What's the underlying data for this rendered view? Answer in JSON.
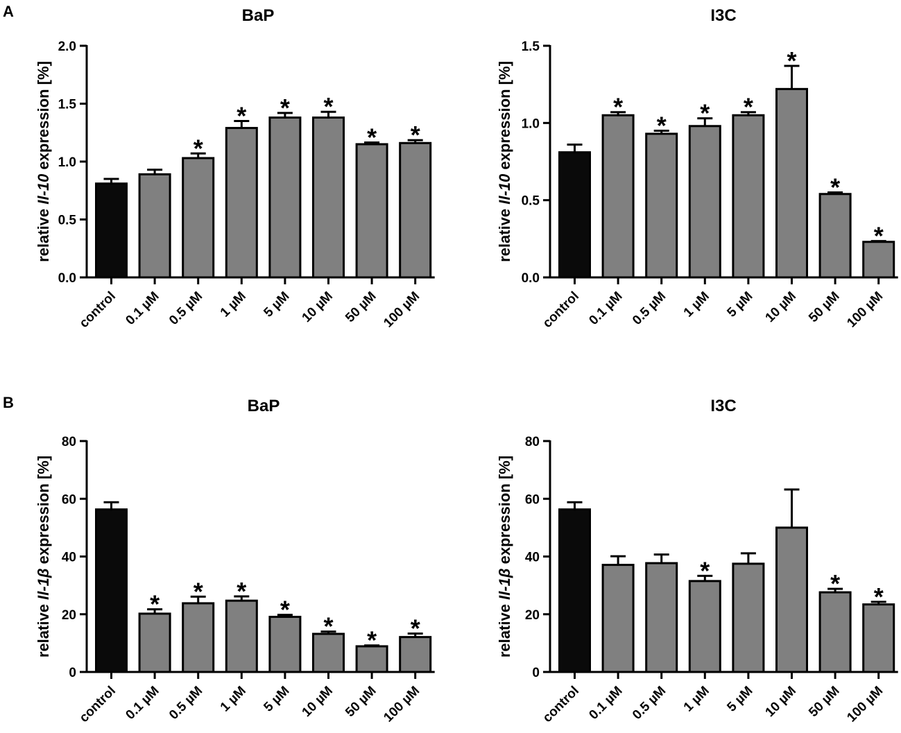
{
  "panel_labels": [
    "A",
    "B"
  ],
  "categories": [
    "control",
    "0.1 µM",
    "0.5 µM",
    "1 µM",
    "5 µM",
    "10 µM",
    "50 µM",
    "100 µM"
  ],
  "colors": {
    "control": "#0a0a0a",
    "treatment": "#808080",
    "axis": "#000000"
  },
  "chart_data": [
    {
      "type": "bar",
      "panel": "A",
      "title": "BaP",
      "ylabel": {
        "prefix": "relative ",
        "gene": "Il-10",
        "suffix": " expression [%]"
      },
      "categories": [
        "control",
        "0.1 µM",
        "0.5 µM",
        "1 µM",
        "5 µM",
        "10 µM",
        "50 µM",
        "100 µM"
      ],
      "values": [
        0.81,
        0.89,
        1.03,
        1.29,
        1.38,
        1.38,
        1.15,
        1.16
      ],
      "errors": [
        0.04,
        0.04,
        0.04,
        0.06,
        0.04,
        0.05,
        0.015,
        0.025
      ],
      "significant": [
        false,
        false,
        true,
        true,
        true,
        true,
        true,
        true
      ],
      "ylim": [
        0,
        2.0
      ],
      "yticks": [
        "0.0",
        "0.5",
        "1.0",
        "1.5",
        "2.0"
      ]
    },
    {
      "type": "bar",
      "panel": "A",
      "title": "I3C",
      "ylabel": {
        "prefix": "relative ",
        "gene": "Il-10",
        "suffix": " expression [%]"
      },
      "categories": [
        "control",
        "0.1 µM",
        "0.5 µM",
        "1 µM",
        "5 µM",
        "10 µM",
        "50 µM",
        "100 µM"
      ],
      "values": [
        0.81,
        1.05,
        0.93,
        0.98,
        1.05,
        1.22,
        0.54,
        0.23
      ],
      "errors": [
        0.05,
        0.02,
        0.02,
        0.05,
        0.02,
        0.15,
        0.01,
        0.005
      ],
      "significant": [
        false,
        true,
        true,
        true,
        true,
        true,
        true,
        true
      ],
      "ylim": [
        0,
        1.5
      ],
      "yticks": [
        "0.0",
        "0.5",
        "1.0",
        "1.5"
      ]
    },
    {
      "type": "bar",
      "panel": "B",
      "title": "BaP",
      "ylabel": {
        "prefix": "relative ",
        "gene": "Il-1β",
        "suffix": " expression [%]"
      },
      "categories": [
        "control",
        "0.1 µM",
        "0.5 µM",
        "1 µM",
        "5 µM",
        "10 µM",
        "50 µM",
        "100 µM"
      ],
      "values": [
        56.3,
        20.2,
        23.8,
        24.7,
        19.1,
        13.2,
        8.9,
        12.1
      ],
      "errors": [
        2.5,
        1.5,
        2.3,
        1.5,
        0.7,
        0.8,
        0.3,
        1.2
      ],
      "significant": [
        false,
        true,
        true,
        true,
        true,
        true,
        true,
        true
      ],
      "ylim": [
        0,
        80
      ],
      "yticks": [
        "0",
        "20",
        "40",
        "60",
        "80"
      ]
    },
    {
      "type": "bar",
      "panel": "B",
      "title": "I3C",
      "ylabel": {
        "prefix": "relative ",
        "gene": "Il-1β",
        "suffix": " expression [%]"
      },
      "categories": [
        "control",
        "0.1 µM",
        "0.5 µM",
        "1 µM",
        "5 µM",
        "10 µM",
        "50 µM",
        "100 µM"
      ],
      "values": [
        56.3,
        37.1,
        37.7,
        31.5,
        37.5,
        50.0,
        27.6,
        23.4
      ],
      "errors": [
        2.5,
        3.0,
        3.0,
        1.8,
        3.6,
        13.2,
        1.2,
        0.9
      ],
      "significant": [
        false,
        false,
        false,
        true,
        false,
        false,
        true,
        true
      ],
      "ylim": [
        0,
        80
      ],
      "yticks": [
        "0",
        "20",
        "40",
        "60",
        "80"
      ]
    }
  ]
}
